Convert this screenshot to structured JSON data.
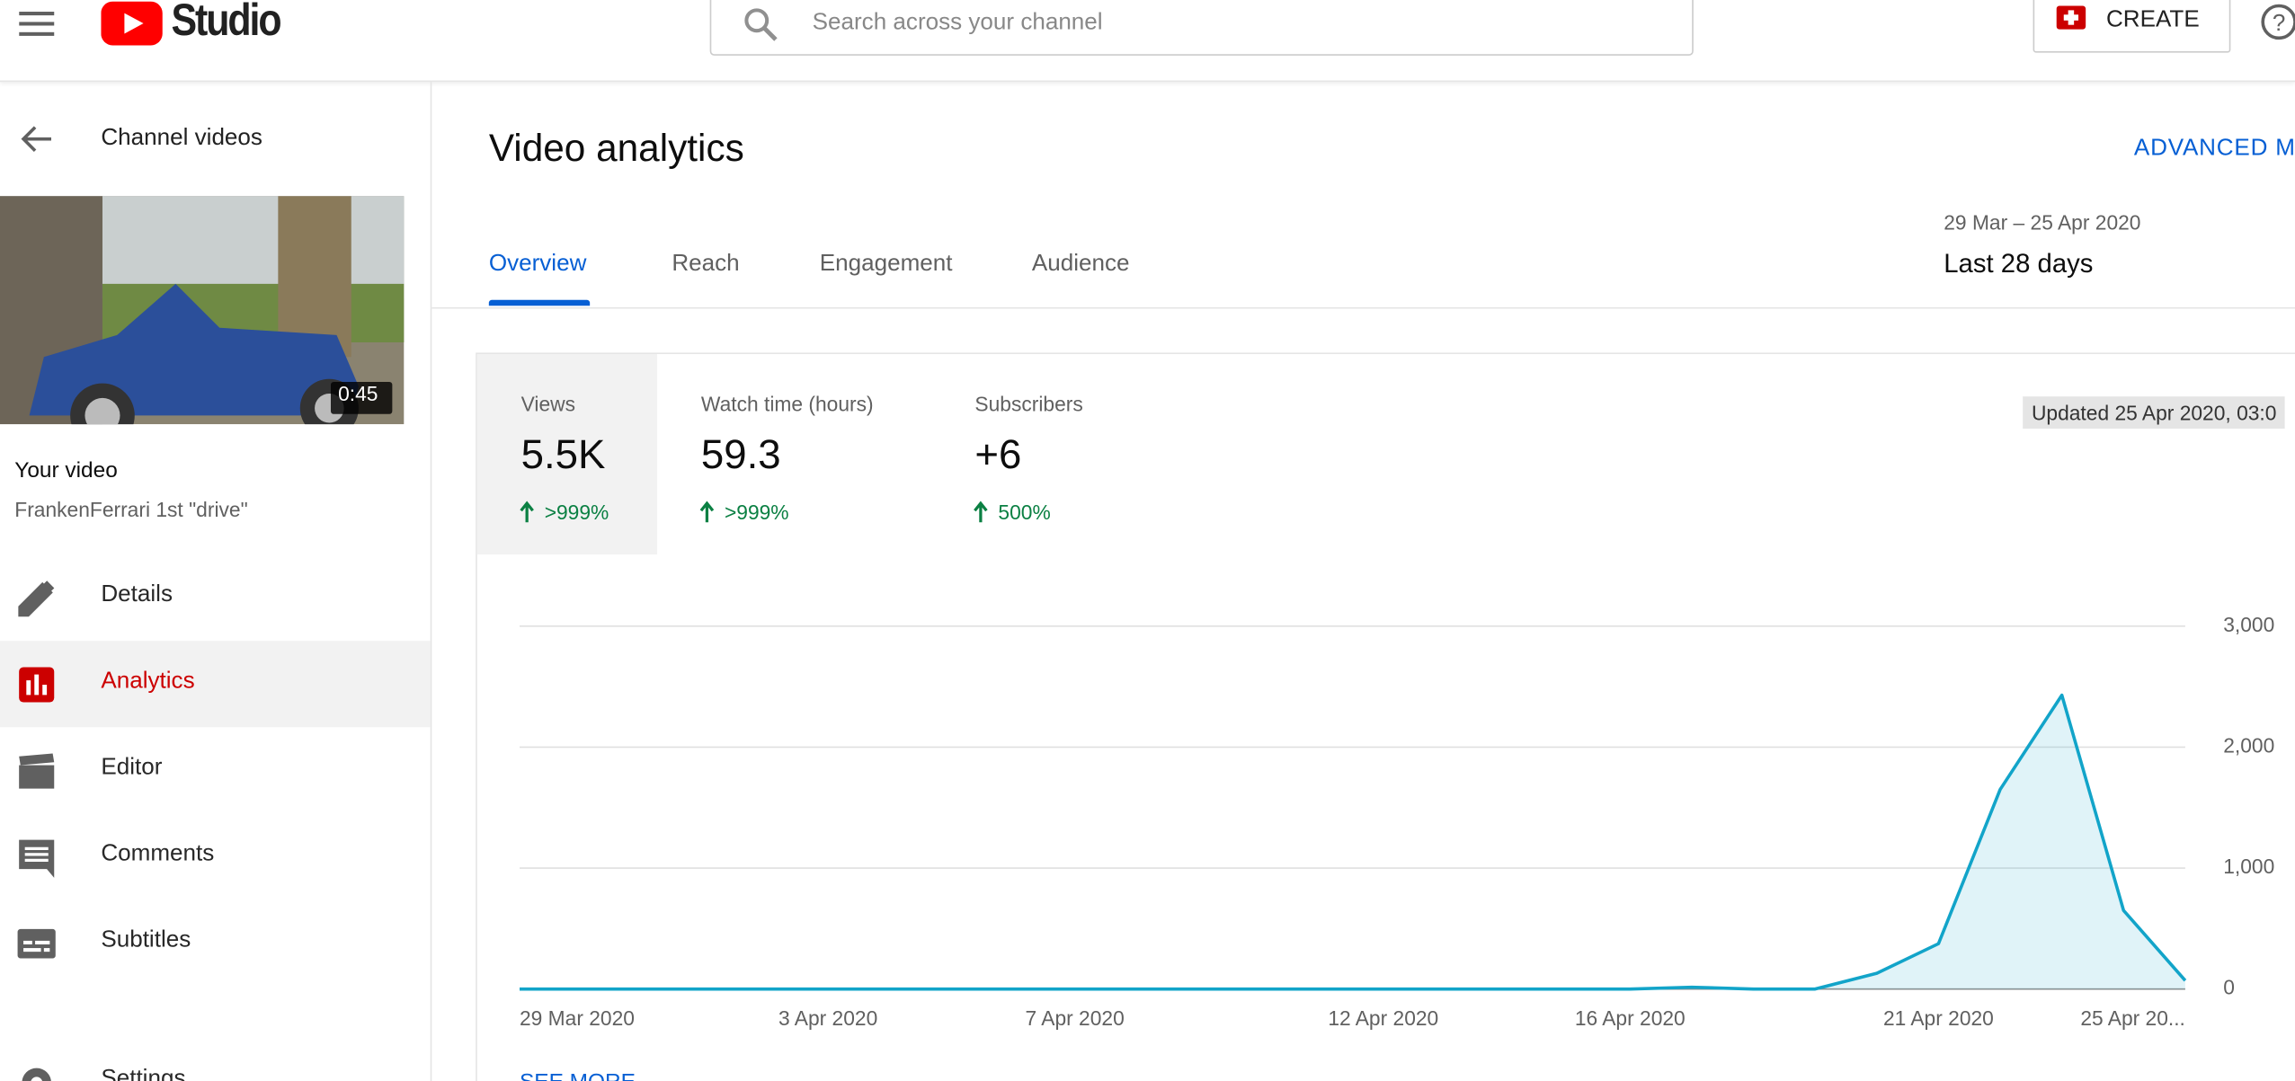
{
  "header": {
    "logo": "Studio",
    "search_placeholder": "Search across your channel",
    "create": "CREATE"
  },
  "sidebar": {
    "back": "Channel videos",
    "duration": "0:45",
    "your_video": "Your video",
    "video_title": "FrankenFerrari 1st \"drive\"",
    "nav": [
      "Details",
      "Analytics",
      "Editor",
      "Comments",
      "Subtitles",
      "Settings"
    ]
  },
  "main": {
    "title": "Video analytics",
    "advanced": "ADVANCED M",
    "tabs": [
      "Overview",
      "Reach",
      "Engagement",
      "Audience"
    ],
    "date_range": "29 Mar – 25 Apr 2020",
    "period": "Last 28 days",
    "updated": "Updated 25 Apr 2020, 03:0",
    "metrics": [
      {
        "label": "Views",
        "value": "5.5K",
        "change": ">999%"
      },
      {
        "label": "Watch time (hours)",
        "value": "59.3",
        "change": ">999%"
      },
      {
        "label": "Subscribers",
        "value": "+6",
        "change": "500%"
      }
    ],
    "see_more": "SEE MORE"
  },
  "chart_data": {
    "type": "line",
    "categories": [
      "29 Mar 2020",
      null,
      null,
      null,
      null,
      "3 Apr 2020",
      null,
      null,
      null,
      "7 Apr 2020",
      null,
      null,
      null,
      null,
      "12 Apr 2020",
      null,
      null,
      null,
      "16 Apr 2020",
      null,
      null,
      null,
      null,
      "21 Apr 2020",
      null,
      null,
      null,
      "25 Apr 20..."
    ],
    "values": [
      0,
      0,
      0,
      0,
      0,
      0,
      0,
      0,
      0,
      0,
      0,
      0,
      0,
      0,
      0,
      0,
      0,
      0,
      0,
      15,
      0,
      0,
      130,
      375,
      1650,
      2430,
      650,
      70
    ],
    "color": "#12a4c9",
    "ylim": [
      0,
      3000
    ],
    "yticks": [
      0,
      {
        "value": 1000,
        "label": "1,000"
      },
      {
        "value": 2000,
        "label": "2,000"
      },
      {
        "value": 3000,
        "label": "3,000"
      }
    ],
    "grid": true
  }
}
